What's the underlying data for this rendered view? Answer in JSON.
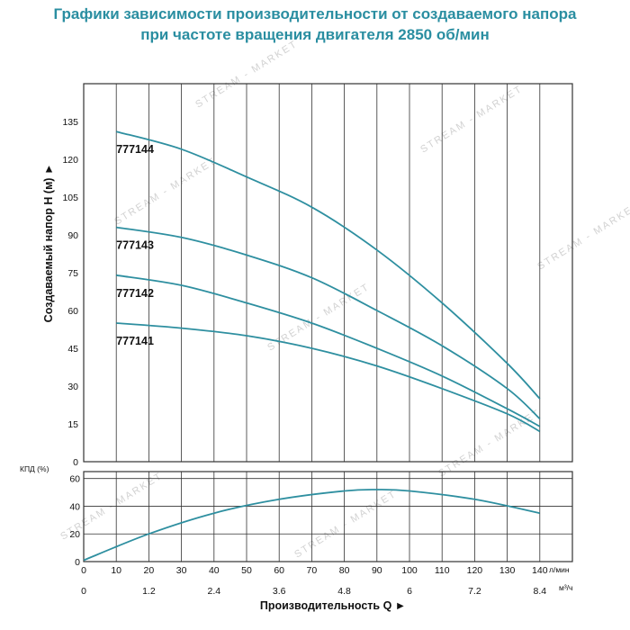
{
  "title_line1": "Графики зависимости производительности от создаваемого напора",
  "title_line2": "при частоте вращения двигателя 2850 об/мин",
  "watermark": "STREAM - MARKET",
  "colors": {
    "title": "#2a8ea1",
    "curve": "#2e8fa0",
    "grid": "#333333"
  },
  "chart_data": [
    {
      "type": "line",
      "ylabel": "Создаваемый напор H (м) ►",
      "ylim": [
        0,
        150
      ],
      "yticks": [
        0,
        15,
        30,
        45,
        60,
        75,
        90,
        105,
        120,
        135
      ],
      "xlim": [
        0,
        150
      ],
      "grid": true,
      "series": [
        {
          "name": "777144",
          "x": [
            10,
            30,
            50,
            70,
            90,
            110,
            130,
            140
          ],
          "values": [
            131,
            124,
            113,
            101,
            84,
            63,
            39,
            25
          ]
        },
        {
          "name": "777143",
          "x": [
            10,
            30,
            50,
            70,
            90,
            110,
            130,
            140
          ],
          "values": [
            93,
            89,
            82,
            73,
            60,
            46,
            29,
            17
          ]
        },
        {
          "name": "777142",
          "x": [
            10,
            30,
            50,
            70,
            90,
            110,
            130,
            140
          ],
          "values": [
            74,
            70,
            63,
            55,
            45,
            34,
            21,
            14
          ]
        },
        {
          "name": "777141",
          "x": [
            10,
            30,
            50,
            70,
            90,
            110,
            130,
            140
          ],
          "values": [
            55,
            53,
            50,
            45,
            38,
            29,
            19,
            12
          ]
        }
      ]
    },
    {
      "type": "line",
      "ylabel": "КПД (%)",
      "ylim": [
        0,
        65
      ],
      "yticks": [
        0,
        20,
        40,
        60
      ],
      "xlabel": "Производительность Q ►",
      "xlim": [
        0,
        150
      ],
      "x_ticks_lmin": [
        0,
        10,
        20,
        30,
        40,
        50,
        60,
        70,
        80,
        90,
        100,
        110,
        120,
        130,
        140
      ],
      "x_unit_lmin": "л/мин",
      "x_ticks_m3h": [
        "0",
        "1.2",
        "2.4",
        "3.6",
        "4.8",
        "6",
        "7.2",
        "8.4"
      ],
      "x_unit_m3h": "м³/ч",
      "grid": true,
      "series": [
        {
          "x": [
            0,
            20,
            40,
            60,
            80,
            90,
            100,
            120,
            140
          ],
          "values": [
            1,
            20,
            35,
            45,
            51,
            52,
            51,
            45,
            35
          ]
        }
      ]
    }
  ]
}
